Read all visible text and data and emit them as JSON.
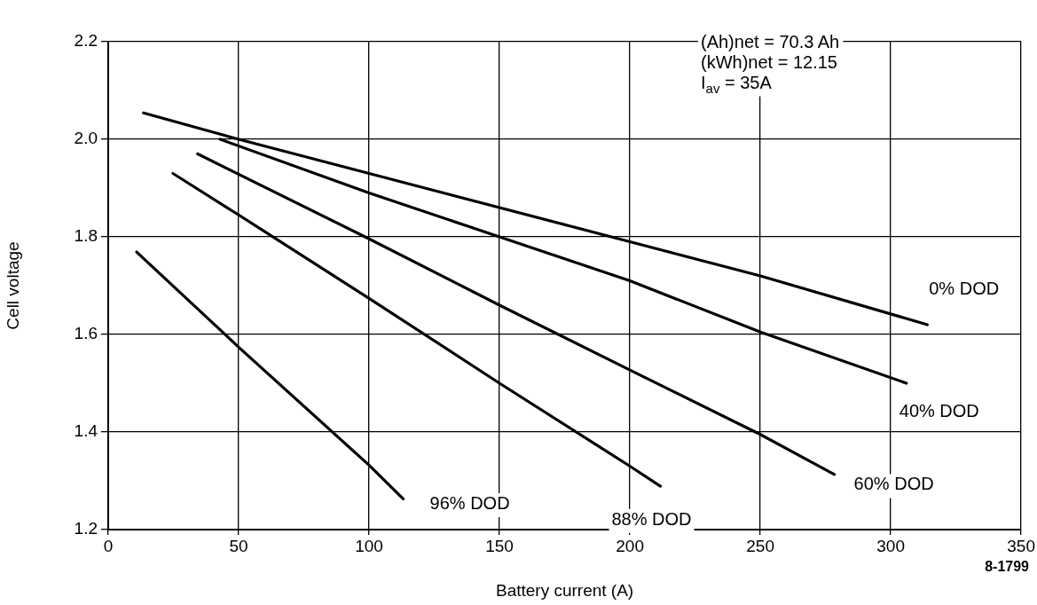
{
  "chart_data": {
    "type": "line",
    "xlabel": "Battery current (A)",
    "ylabel": "Cell voltage",
    "xlim": [
      0,
      350
    ],
    "xticks": [
      0,
      50,
      100,
      150,
      200,
      250,
      300,
      350
    ],
    "ylim": [
      1.2,
      2.2
    ],
    "yticks": [
      1.2,
      1.4,
      1.6,
      1.8,
      {
        "value": 2,
        "label": "2.0"
      },
      2.2
    ],
    "grid": true,
    "legend": false,
    "line_style": "solid",
    "series": [
      {
        "name": "0% DOD",
        "color": "#000000",
        "x": [
          13.5,
          50,
          100,
          200,
          250,
          314
        ],
        "values": [
          2.054,
          2.0,
          1.93,
          1.79,
          1.72,
          1.62
        ]
      },
      {
        "name": "40% DOD",
        "color": "#000000",
        "x": [
          42.9,
          100,
          150,
          200,
          250,
          306
        ],
        "values": [
          2.0,
          1.89,
          1.8,
          1.71,
          1.605,
          1.5
        ]
      },
      {
        "name": "60% DOD",
        "color": "#000000",
        "x": [
          34.3,
          100,
          150,
          200,
          250,
          278.4
        ],
        "values": [
          1.97,
          1.796,
          1.66,
          1.527,
          1.395,
          1.313
        ]
      },
      {
        "name": "88% DOD",
        "color": "#000000",
        "x": [
          24.8,
          50,
          100,
          150,
          200,
          211.7
        ],
        "values": [
          1.93,
          1.845,
          1.674,
          1.5,
          1.33,
          1.289
        ]
      },
      {
        "name": "96% DOD",
        "color": "#000000",
        "x": [
          10.9,
          50,
          100,
          113.1
        ],
        "values": [
          1.769,
          1.574,
          1.332,
          1.263
        ]
      }
    ],
    "annotations": [
      "(Ah)net = 70.3 Ah",
      "(kWh)net = 12.15",
      "I$_{av}$ = 35A",
      "8-1799"
    ]
  }
}
